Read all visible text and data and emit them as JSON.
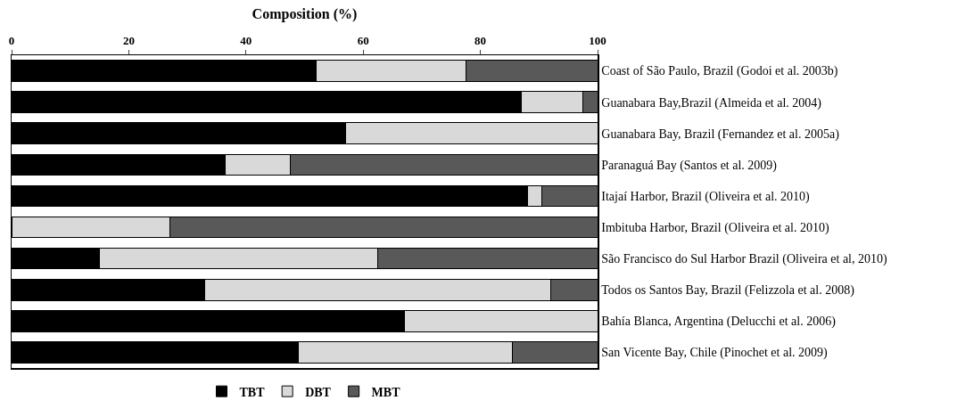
{
  "chart_data": {
    "type": "bar",
    "orientation": "horizontal",
    "stacked": true,
    "xlabel": "Composition (%)",
    "categories": [
      "Coast of São Paulo, Brazil (Godoi et al. 2003b)",
      "Guanabara Bay,Brazil (Almeida et al. 2004)",
      "Guanabara Bay, Brazil (Fernandez et al. 2005a)",
      "Paranaguá Bay (Santos et al. 2009)",
      "Itajaí Harbor, Brazil (Oliveira et al. 2010)",
      "Imbituba Harbor, Brazil (Oliveira et al. 2010)",
      "São Francisco do Sul Harbor Brazil (Oliveira et al, 2010)",
      "Todos os Santos Bay, Brazil (Felizzola et al. 2008)",
      "Bahía Blanca, Argentina (Delucchi et al. 2006)",
      "San Vicente Bay, Chile (Pinochet et al. 2009)"
    ],
    "series": [
      {
        "name": "TBT",
        "color": "#000000",
        "values": [
          52,
          87,
          57,
          36.5,
          88,
          0,
          15,
          33,
          67,
          49
        ]
      },
      {
        "name": "DBT",
        "color": "#d9d9d9",
        "values": [
          25.5,
          10.5,
          43,
          11,
          2.5,
          27,
          47.5,
          59,
          33,
          36.5
        ]
      },
      {
        "name": "MBT",
        "color": "#595959",
        "values": [
          22.5,
          2.5,
          0,
          52.5,
          9.5,
          73,
          37.5,
          8,
          0,
          14.5
        ]
      }
    ],
    "xlim": [
      0,
      100
    ],
    "xticks": [
      0,
      20,
      40,
      60,
      80,
      100
    ],
    "grid": false,
    "legend": "bottom"
  }
}
